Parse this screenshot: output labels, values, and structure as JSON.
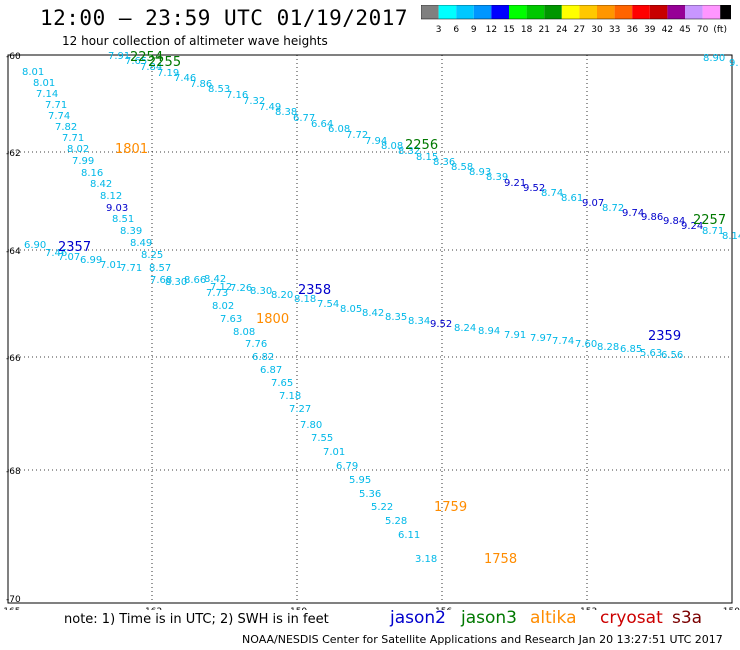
{
  "header": {
    "title": "12:00 – 23:59 UTC 01/19/2017",
    "subtitle": "12 hour collection of altimeter wave heights"
  },
  "legend": {
    "tick_labels": [
      "3",
      "6",
      "9",
      "12",
      "15",
      "18",
      "21",
      "24",
      "27",
      "30",
      "33",
      "36",
      "39",
      "42",
      "45",
      "70",
      "(ft)"
    ],
    "colors": [
      "#808080",
      "#00ffff",
      "#00c8ff",
      "#0096ff",
      "#0000ff",
      "#00ff00",
      "#00c800",
      "#009600",
      "#ffff00",
      "#ffc800",
      "#ff9600",
      "#ff6400",
      "#ff0000",
      "#c80000",
      "#960096",
      "#c896ff",
      "#ff96ff",
      "#000000"
    ]
  },
  "axes": {
    "lat_labels": [
      "-60",
      "-62",
      "-64",
      "-66",
      "-68",
      "-70"
    ],
    "lon_labels": [
      "-165",
      "-162",
      "-159",
      "-156",
      "-153",
      "-150"
    ]
  },
  "footer": {
    "note": "note: 1) Time is in UTC; 2) SWH is in feet",
    "satellites": [
      {
        "name": "jason2",
        "color": "#0000cc"
      },
      {
        "name": "jason3",
        "color": "#007800"
      },
      {
        "name": "altika",
        "color": "#ff8c00"
      },
      {
        "name": "cryosat",
        "color": "#cc0000"
      },
      {
        "name": "s3a",
        "color": "#7a0000"
      }
    ],
    "credit": "NOAA/NESDIS Center for Satellite Applications and Research    Jan 20 13:27:51 UTC 2017"
  },
  "time_labels": [
    {
      "text": "2254",
      "color": "#007800"
    },
    {
      "text": "2255",
      "color": "#007800"
    },
    {
      "text": "2256",
      "color": "#007800"
    },
    {
      "text": "2257",
      "color": "#007800"
    },
    {
      "text": "1801",
      "color": "#ff8c00"
    },
    {
      "text": "1800",
      "color": "#ff8c00"
    },
    {
      "text": "1759",
      "color": "#ff8c00"
    },
    {
      "text": "1758",
      "color": "#ff8c00"
    },
    {
      "text": "2357",
      "color": "#0000cc"
    },
    {
      "text": "2358",
      "color": "#0000cc"
    },
    {
      "text": "2359",
      "color": "#0000cc"
    }
  ],
  "tracks": [
    {
      "name": "jason3-pass",
      "values": [
        "7.91",
        "7.65",
        "7.84",
        "7.19",
        "7.46",
        "7.86",
        "8.53",
        "7.16",
        "7.32",
        "7.49",
        "8.38",
        "6.77",
        "6.64",
        "6.08",
        "7.72",
        "7.94",
        "8.08",
        "8.32",
        "8.15",
        "8.36",
        "8.58",
        "8.93",
        "8.39",
        "9.21",
        "9.52",
        "8.74",
        "8.61",
        "9.07",
        "8.72",
        "9.74",
        "9.86",
        "9.84",
        "9.24",
        "8.71",
        "8.14"
      ]
    },
    {
      "name": "altika-pass",
      "values": [
        "8.01",
        "8.01",
        "7.14",
        "7.71",
        "7.74",
        "7.82",
        "7.71",
        "8.02",
        "7.99",
        "8.16",
        "8.42",
        "8.12",
        "9.03",
        "8.51",
        "8.39",
        "8.49",
        "8.25",
        "8.57",
        "7.68",
        "8.30",
        "8.66",
        "8.42",
        "7.73",
        "8.02",
        "7.63",
        "8.08",
        "7.76",
        "6.82",
        "6.87",
        "7.65",
        "7.18",
        "7.27",
        "7.80",
        "7.55",
        "7.01",
        "6.79",
        "5.95",
        "5.36",
        "5.22",
        "5.28",
        "6.11",
        "3.18"
      ]
    },
    {
      "name": "jason2-pass",
      "values": [
        "6.90",
        "7.46",
        "7.07",
        "6.99",
        "7.01",
        "7.71",
        "7.12",
        "7.26",
        "8.30",
        "8.20",
        "8.18",
        "7.54",
        "8.05",
        "8.42",
        "8.35",
        "8.34",
        "9.52",
        "8.24",
        "8.94",
        "7.91",
        "7.97",
        "7.74",
        "7.60",
        "8.28",
        "6.85",
        "5.63",
        "6.56"
      ]
    }
  ],
  "extra_values": [
    "8.90",
    "9."
  ]
}
